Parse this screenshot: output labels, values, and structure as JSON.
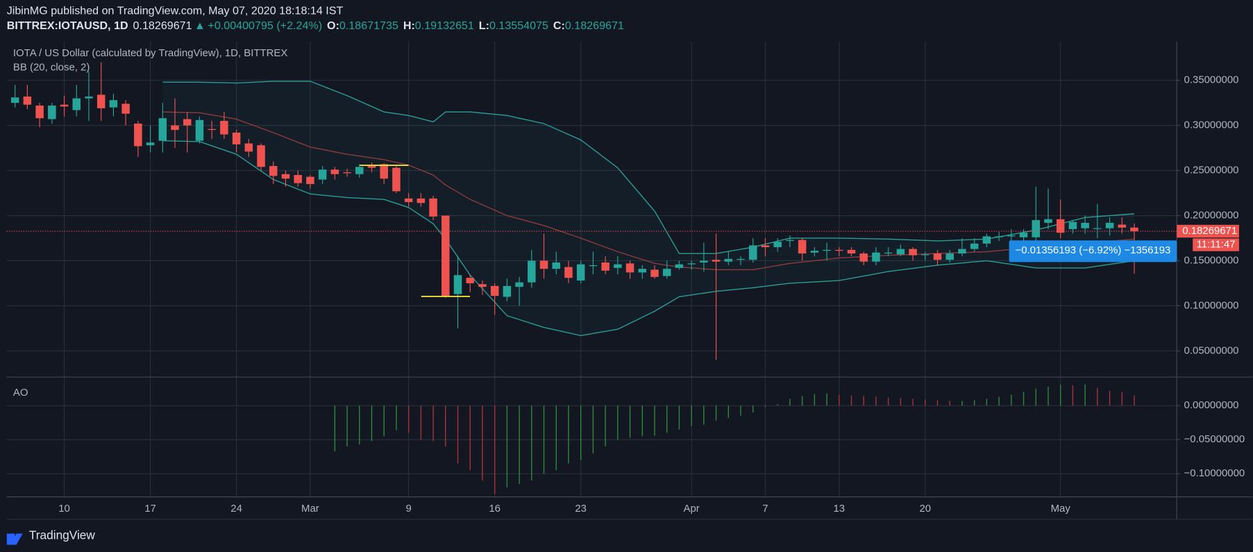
{
  "header": {
    "publisher": "JibinMG published on TradingView.com, May 07, 2020 18:18:14 IST",
    "symbol": "BITTREX:IOTAUSD, 1D",
    "arrow": "▲",
    "change": "+0.00400795 (+2.24%)",
    "ohlc_labels": [
      "O:",
      "H:",
      "L:",
      "C:"
    ]
  },
  "footer": {
    "brand": "TradingView"
  },
  "chart_data": [
    {
      "type": "candlestick",
      "title": "IOTA / US Dollar (calculated by TradingView), 1D, BITTREX",
      "categories": [
        "2020-02-06",
        "2020-02-07",
        "2020-02-08",
        "2020-02-09",
        "2020-02-10",
        "2020-02-11",
        "2020-02-12",
        "2020-02-13",
        "2020-02-14",
        "2020-02-15",
        "2020-02-16",
        "2020-02-17",
        "2020-02-18",
        "2020-02-19",
        "2020-02-20",
        "2020-02-21",
        "2020-02-22",
        "2020-02-23",
        "2020-02-24",
        "2020-02-25",
        "2020-02-26",
        "2020-02-27",
        "2020-02-28",
        "2020-02-29",
        "2020-03-01",
        "2020-03-02",
        "2020-03-03",
        "2020-03-04",
        "2020-03-05",
        "2020-03-06",
        "2020-03-07",
        "2020-03-08",
        "2020-03-09",
        "2020-03-10",
        "2020-03-11",
        "2020-03-12",
        "2020-03-13",
        "2020-03-14",
        "2020-03-15",
        "2020-03-16",
        "2020-03-17",
        "2020-03-18",
        "2020-03-19",
        "2020-03-20",
        "2020-03-21",
        "2020-03-22",
        "2020-03-23",
        "2020-03-24",
        "2020-03-25",
        "2020-03-26",
        "2020-03-27",
        "2020-03-28",
        "2020-03-29",
        "2020-03-30",
        "2020-03-31",
        "2020-04-01",
        "2020-04-02",
        "2020-04-03",
        "2020-04-04",
        "2020-04-05",
        "2020-04-06",
        "2020-04-07",
        "2020-04-08",
        "2020-04-09",
        "2020-04-10",
        "2020-04-11",
        "2020-04-12",
        "2020-04-13",
        "2020-04-14",
        "2020-04-15",
        "2020-04-16",
        "2020-04-17",
        "2020-04-18",
        "2020-04-19",
        "2020-04-20",
        "2020-04-21",
        "2020-04-22",
        "2020-04-23",
        "2020-04-24",
        "2020-04-25",
        "2020-04-26",
        "2020-04-27",
        "2020-04-28",
        "2020-04-29",
        "2020-04-30",
        "2020-05-01",
        "2020-05-02",
        "2020-05-03",
        "2020-05-04",
        "2020-05-05",
        "2020-05-06",
        "2020-05-07"
      ],
      "open": [
        0.325,
        0.332,
        0.322,
        0.307,
        0.323,
        0.317,
        0.33,
        0.334,
        0.32,
        0.324,
        0.302,
        0.278,
        0.283,
        0.3,
        0.307,
        0.283,
        0.296,
        0.305,
        0.292,
        0.28,
        0.278,
        0.255,
        0.246,
        0.245,
        0.243,
        0.24,
        0.251,
        0.248,
        0.246,
        0.255,
        0.257,
        0.253,
        0.219,
        0.219,
        0.219,
        0.2,
        0.113,
        0.131,
        0.124,
        0.122,
        0.11,
        0.121,
        0.126,
        0.15,
        0.141,
        0.143,
        0.128,
        0.144,
        0.148,
        0.142,
        0.147,
        0.137,
        0.14,
        0.133,
        0.142,
        0.146,
        0.148,
        0.151,
        0.149,
        0.151,
        0.151,
        0.167,
        0.165,
        0.172,
        0.173,
        0.159,
        0.161,
        0.162,
        0.162,
        0.158,
        0.149,
        0.158,
        0.157,
        0.163,
        0.157,
        0.158,
        0.151,
        0.158,
        0.163,
        0.169,
        0.176,
        0.177,
        0.176,
        0.176,
        0.192,
        0.196,
        0.185,
        0.186,
        0.186,
        0.186,
        0.19,
        0.18671735
      ],
      "high": [
        0.345,
        0.345,
        0.325,
        0.325,
        0.333,
        0.345,
        0.36,
        0.37,
        0.335,
        0.328,
        0.305,
        0.3,
        0.325,
        0.33,
        0.315,
        0.31,
        0.305,
        0.315,
        0.295,
        0.285,
        0.28,
        0.26,
        0.25,
        0.25,
        0.245,
        0.255,
        0.254,
        0.252,
        0.257,
        0.259,
        0.258,
        0.255,
        0.225,
        0.225,
        0.222,
        0.2,
        0.155,
        0.135,
        0.128,
        0.125,
        0.13,
        0.132,
        0.162,
        0.18,
        0.16,
        0.15,
        0.15,
        0.16,
        0.155,
        0.155,
        0.15,
        0.145,
        0.145,
        0.15,
        0.15,
        0.15,
        0.17,
        0.18,
        0.16,
        0.155,
        0.175,
        0.175,
        0.175,
        0.178,
        0.175,
        0.165,
        0.17,
        0.165,
        0.165,
        0.16,
        0.165,
        0.165,
        0.168,
        0.165,
        0.16,
        0.162,
        0.162,
        0.175,
        0.175,
        0.18,
        0.182,
        0.185,
        0.185,
        0.232,
        0.23,
        0.218,
        0.195,
        0.2,
        0.213,
        0.198,
        0.198,
        0.19132651
      ],
      "low": [
        0.32,
        0.318,
        0.298,
        0.302,
        0.31,
        0.31,
        0.305,
        0.305,
        0.31,
        0.3,
        0.265,
        0.27,
        0.27,
        0.275,
        0.27,
        0.28,
        0.285,
        0.285,
        0.27,
        0.265,
        0.25,
        0.235,
        0.232,
        0.232,
        0.23,
        0.235,
        0.24,
        0.243,
        0.242,
        0.248,
        0.235,
        0.225,
        0.21,
        0.21,
        0.195,
        0.109,
        0.075,
        0.115,
        0.112,
        0.09,
        0.105,
        0.1,
        0.12,
        0.13,
        0.135,
        0.125,
        0.125,
        0.135,
        0.135,
        0.135,
        0.13,
        0.13,
        0.13,
        0.13,
        0.14,
        0.14,
        0.138,
        0.04,
        0.145,
        0.145,
        0.148,
        0.155,
        0.16,
        0.165,
        0.15,
        0.155,
        0.15,
        0.155,
        0.155,
        0.145,
        0.145,
        0.155,
        0.155,
        0.15,
        0.15,
        0.145,
        0.148,
        0.155,
        0.16,
        0.165,
        0.172,
        0.17,
        0.17,
        0.17,
        0.185,
        0.175,
        0.18,
        0.18,
        0.175,
        0.178,
        0.18,
        0.13554075
      ],
      "close": [
        0.331,
        0.323,
        0.308,
        0.322,
        0.321,
        0.33,
        0.332,
        0.319,
        0.328,
        0.313,
        0.277,
        0.281,
        0.308,
        0.295,
        0.3,
        0.306,
        0.295,
        0.29,
        0.279,
        0.271,
        0.254,
        0.244,
        0.241,
        0.236,
        0.235,
        0.251,
        0.246,
        0.247,
        0.254,
        0.253,
        0.241,
        0.227,
        0.215,
        0.214,
        0.199,
        0.111,
        0.134,
        0.125,
        0.121,
        0.111,
        0.122,
        0.126,
        0.15,
        0.141,
        0.148,
        0.131,
        0.146,
        0.145,
        0.139,
        0.146,
        0.137,
        0.141,
        0.132,
        0.141,
        0.146,
        0.147,
        0.15,
        0.149,
        0.152,
        0.152,
        0.167,
        0.165,
        0.171,
        0.173,
        0.158,
        0.161,
        0.162,
        0.161,
        0.158,
        0.149,
        0.159,
        0.159,
        0.163,
        0.156,
        0.157,
        0.151,
        0.158,
        0.163,
        0.169,
        0.177,
        0.177,
        0.178,
        0.181,
        0.195,
        0.196,
        0.181,
        0.193,
        0.192,
        0.186,
        0.192,
        0.18671735,
        0.18269671
      ],
      "up_color": "#26a69a",
      "down_color": "#ef5350",
      "ylim": [
        0.021,
        0.393
      ],
      "yticks": [
        {
          "value": 0.05,
          "label": "0.05000000"
        },
        {
          "value": 0.1,
          "label": "0.10000000"
        },
        {
          "value": 0.15,
          "label": "0.15000000"
        },
        {
          "value": 0.2,
          "label": "0.20000000"
        },
        {
          "value": 0.25,
          "label": "0.25000000"
        },
        {
          "value": 0.3,
          "label": "0.30000000"
        },
        {
          "value": 0.35,
          "label": "0.35000000"
        }
      ],
      "xticks": [
        {
          "value": "2020-02-10",
          "label": "10"
        },
        {
          "value": "2020-02-17",
          "label": "17"
        },
        {
          "value": "2020-02-24",
          "label": "24"
        },
        {
          "value": "2020-03-01",
          "label": "Mar"
        },
        {
          "value": "2020-03-09",
          "label": "9"
        },
        {
          "value": "2020-03-16",
          "label": "16"
        },
        {
          "value": "2020-03-23",
          "label": "23"
        },
        {
          "value": "2020-04-01",
          "label": "Apr"
        },
        {
          "value": "2020-04-07",
          "label": "7"
        },
        {
          "value": "2020-04-13",
          "label": "13"
        },
        {
          "value": "2020-04-20",
          "label": "20"
        },
        {
          "value": "2020-05-01",
          "label": "May"
        }
      ],
      "grid": true,
      "indicator": {
        "name": "BB (20, close, 2)",
        "band_color": "#2a9d96",
        "middle_color": "#8e3b3b",
        "x": [
          "2020-02-18",
          "2020-02-21",
          "2020-02-24",
          "2020-02-27",
          "2020-03-01",
          "2020-03-04",
          "2020-03-07",
          "2020-03-09",
          "2020-03-11",
          "2020-03-12",
          "2020-03-14",
          "2020-03-17",
          "2020-03-20",
          "2020-03-23",
          "2020-03-26",
          "2020-03-29",
          "2020-03-31",
          "2020-04-03",
          "2020-04-06",
          "2020-04-09",
          "2020-04-13",
          "2020-04-17",
          "2020-04-21",
          "2020-04-25",
          "2020-04-29",
          "2020-05-03",
          "2020-05-07"
        ],
        "upper": [
          0.348,
          0.348,
          0.347,
          0.349,
          0.349,
          0.333,
          0.315,
          0.311,
          0.304,
          0.315,
          0.315,
          0.311,
          0.302,
          0.284,
          0.253,
          0.205,
          0.158,
          0.158,
          0.165,
          0.175,
          0.175,
          0.174,
          0.172,
          0.174,
          0.184,
          0.198,
          0.202
        ],
        "middle": [
          0.315,
          0.314,
          0.307,
          0.292,
          0.276,
          0.268,
          0.262,
          0.256,
          0.245,
          0.234,
          0.218,
          0.2,
          0.189,
          0.175,
          0.16,
          0.147,
          0.143,
          0.14,
          0.14,
          0.147,
          0.153,
          0.156,
          0.158,
          0.16,
          0.165,
          0.169,
          0.174
        ],
        "lower": [
          0.283,
          0.282,
          0.268,
          0.24,
          0.224,
          0.22,
          0.218,
          0.209,
          0.191,
          0.174,
          0.134,
          0.089,
          0.076,
          0.067,
          0.074,
          0.094,
          0.11,
          0.116,
          0.12,
          0.125,
          0.128,
          0.138,
          0.145,
          0.15,
          0.142,
          0.142,
          0.15
        ]
      },
      "countdown": "11:11:47",
      "tooltip": "−0.01356193 (−6.92%) −1356193"
    },
    {
      "type": "histogram",
      "title": "AO",
      "up_color": "#2e8b3a",
      "down_color": "#a8343a",
      "values": [
        null,
        null,
        null,
        null,
        null,
        null,
        null,
        null,
        null,
        null,
        null,
        null,
        null,
        null,
        null,
        null,
        null,
        null,
        null,
        null,
        null,
        null,
        null,
        null,
        null,
        null,
        -0.067,
        -0.06,
        -0.057,
        -0.052,
        -0.045,
        -0.036,
        -0.04,
        -0.05,
        -0.052,
        -0.06,
        -0.085,
        -0.095,
        -0.11,
        -0.13,
        -0.12,
        -0.115,
        -0.11,
        -0.1,
        -0.095,
        -0.085,
        -0.08,
        -0.07,
        -0.06,
        -0.05,
        -0.047,
        -0.045,
        -0.044,
        -0.04,
        -0.035,
        -0.03,
        -0.028,
        -0.022,
        -0.018,
        -0.015,
        -0.01,
        -0.002,
        0.002,
        0.01,
        0.014,
        0.017,
        0.018,
        0.016,
        0.015,
        0.014,
        0.013,
        0.012,
        0.011,
        0.01,
        0.009,
        0.008,
        0.007,
        0.007,
        0.008,
        0.01,
        0.013,
        0.016,
        0.02,
        0.025,
        0.028,
        0.031,
        0.03,
        0.031,
        0.026,
        0.022,
        0.02,
        0.015
      ],
      "ylim": [
        -0.134,
        0.042
      ],
      "yticks": [
        {
          "value": -0.1,
          "label": "−0.10000000"
        },
        {
          "value": -0.05,
          "label": "−0.05000000"
        },
        {
          "value": 0,
          "label": "0.00000000"
        }
      ],
      "grid": true
    }
  ]
}
